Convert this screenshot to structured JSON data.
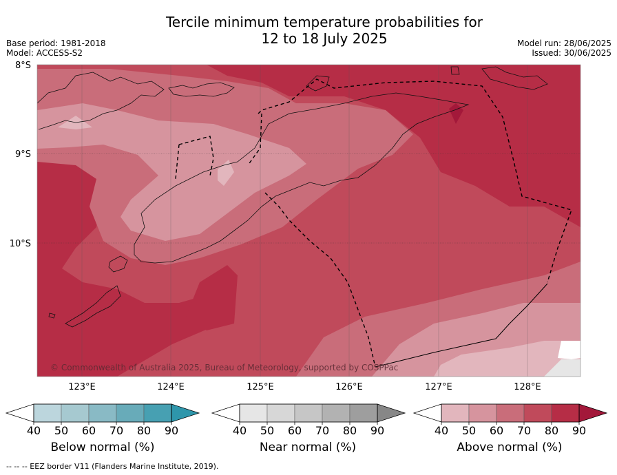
{
  "title": {
    "line1": "Tercile minimum temperature probabilities for",
    "line2": "12 to 18 July 2025"
  },
  "meta_left": {
    "base_period": "Base period: 1981-2018",
    "model": "Model: ACCESS-S2"
  },
  "meta_right": {
    "model_run": "Model run: 28/06/2025",
    "issued": "Issued: 30/06/2025"
  },
  "map": {
    "lat_labels": [
      "8°S",
      "9°S",
      "10°S"
    ],
    "lon_labels": [
      "123°E",
      "124°E",
      "125°E",
      "126°E",
      "127°E",
      "128°E"
    ],
    "copyright": "© Commonwealth of Australia 2025, Bureau of Meteorology, supported by COSPPac"
  },
  "colorbars": [
    {
      "title": "Below normal (%)",
      "ticks": [
        "40",
        "50",
        "60",
        "70",
        "80",
        "90"
      ],
      "colors": [
        "#ffffff",
        "#bcd6dd",
        "#a6c9d0",
        "#89bac5",
        "#68abb9",
        "#47a0b2",
        "#2e96ab"
      ]
    },
    {
      "title": "Near normal (%)",
      "ticks": [
        "40",
        "50",
        "60",
        "70",
        "80",
        "90"
      ],
      "colors": [
        "#ffffff",
        "#e6e6e6",
        "#d7d7d7",
        "#c6c6c6",
        "#b2b2b2",
        "#9e9e9e",
        "#878787"
      ]
    },
    {
      "title": "Above normal (%)",
      "ticks": [
        "40",
        "50",
        "60",
        "70",
        "80",
        "90"
      ],
      "colors": [
        "#ffffff",
        "#e2b6bd",
        "#d6949e",
        "#c96d7a",
        "#c04a5b",
        "#b62d46",
        "#a3183a"
      ]
    }
  ],
  "footer": "--  --  -- EEZ border V11 (Flanders Marine Institute, 2019)."
}
